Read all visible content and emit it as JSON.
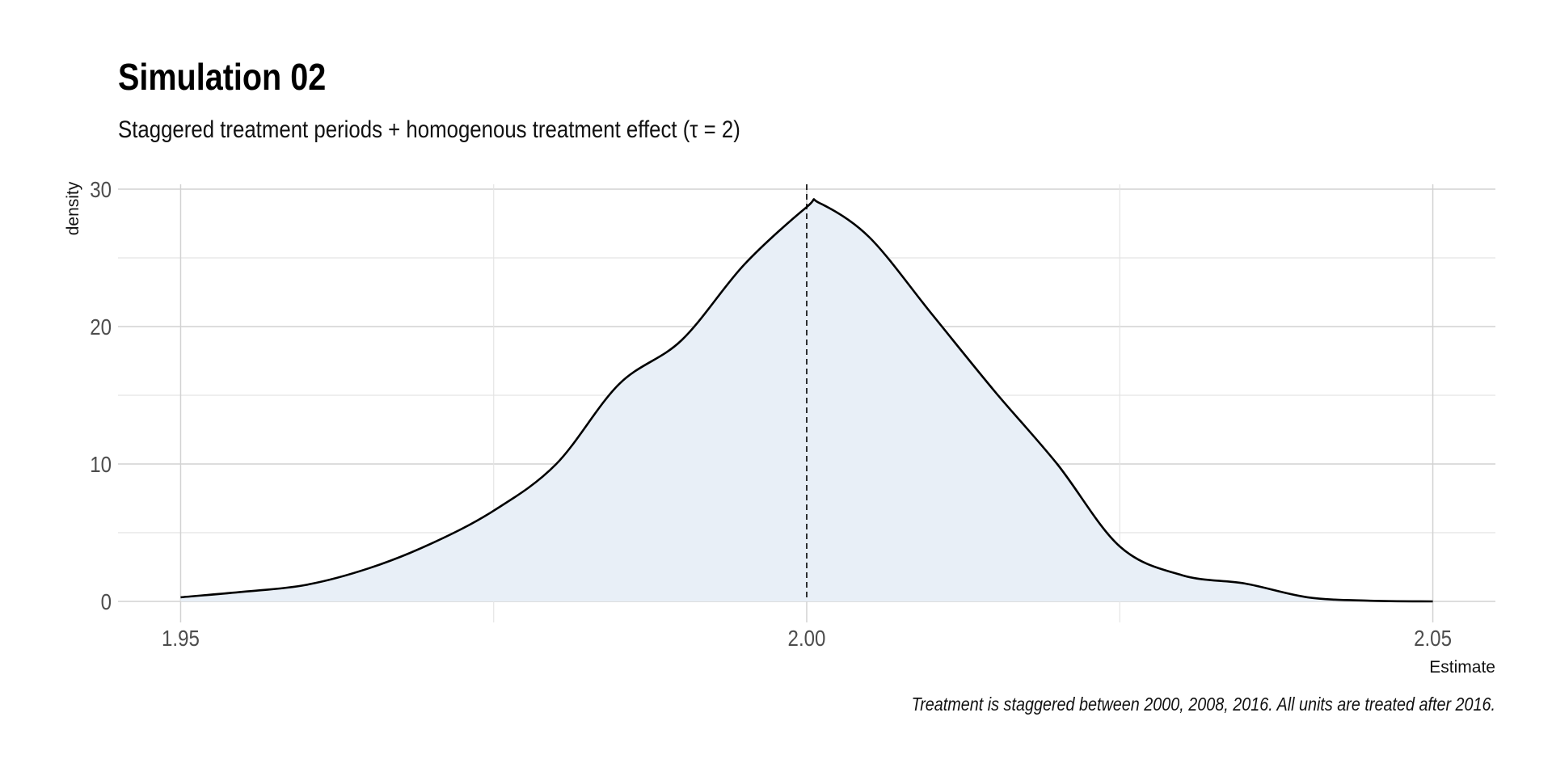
{
  "chart_data": {
    "type": "area",
    "title": "Simulation 02",
    "subtitle": "Staggered treatment periods + homogenous treatment effect (τ = 2)",
    "caption": "Treatment is staggered between 2000, 2008, 2016. All units are treated after 2016.",
    "xlabel": "Estimate",
    "ylabel": "density",
    "xlim": [
      1.945,
      2.055
    ],
    "ylim": [
      0,
      30
    ],
    "x_ticks": [
      1.95,
      2.0,
      2.05
    ],
    "x_tick_labels": [
      "1.95",
      "2.00",
      "2.05"
    ],
    "y_ticks": [
      0,
      10,
      20,
      30
    ],
    "y_tick_labels": [
      "0",
      "10",
      "20",
      "30"
    ],
    "grid": true,
    "reference_line": {
      "x": 2.0,
      "style": "dashed"
    },
    "fill_color": "#e8eff7",
    "line_color": "#000000",
    "x": [
      1.95,
      1.955,
      1.96,
      1.965,
      1.97,
      1.975,
      1.98,
      1.985,
      1.99,
      1.995,
      2.0,
      2.001,
      2.005,
      2.01,
      2.015,
      2.02,
      2.025,
      2.03,
      2.035,
      2.04,
      2.045,
      2.05
    ],
    "y": [
      0.3,
      0.7,
      1.2,
      2.4,
      4.2,
      6.6,
      10.0,
      15.8,
      19.0,
      24.5,
      28.7,
      29.0,
      26.5,
      20.9,
      15.3,
      10.0,
      4.0,
      1.9,
      1.3,
      0.3,
      0.05,
      0.0
    ]
  }
}
